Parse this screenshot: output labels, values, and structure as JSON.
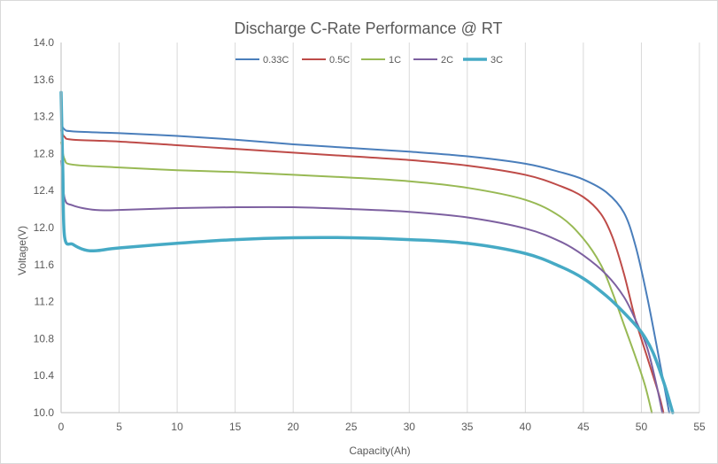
{
  "chart_data": {
    "type": "line",
    "title": "Discharge C-Rate Performance  @ RT",
    "xlabel": "Capacity(Ah)",
    "ylabel": "Voltage(V)",
    "xlim": [
      0,
      55
    ],
    "ylim": [
      10.0,
      14.0
    ],
    "x_ticks": [
      0,
      5,
      10,
      15,
      20,
      25,
      30,
      35,
      40,
      45,
      50,
      55
    ],
    "x_tick_labels": [
      "0",
      "5",
      "10",
      "15",
      "20",
      "25",
      "30",
      "35",
      "40",
      "45",
      "50",
      "55"
    ],
    "y_ticks": [
      10.0,
      10.4,
      10.8,
      11.2,
      11.6,
      12.0,
      12.4,
      12.8,
      13.2,
      13.6,
      14.0
    ],
    "y_tick_labels": [
      "10.0",
      "10.4",
      "10.8",
      "11.2",
      "11.6",
      "12.0",
      "12.4",
      "12.8",
      "13.2",
      "13.6",
      "14.0"
    ],
    "grid": "vertical",
    "legend_position": "top",
    "series": [
      {
        "name": "0.33C",
        "color": "#4a7ebb",
        "points": [
          [
            0,
            13.12
          ],
          [
            0.3,
            13.06
          ],
          [
            1,
            13.04
          ],
          [
            5,
            13.02
          ],
          [
            10,
            12.99
          ],
          [
            15,
            12.95
          ],
          [
            20,
            12.9
          ],
          [
            25,
            12.86
          ],
          [
            30,
            12.82
          ],
          [
            35,
            12.77
          ],
          [
            40,
            12.69
          ],
          [
            43,
            12.6
          ],
          [
            45,
            12.52
          ],
          [
            47,
            12.38
          ],
          [
            48.5,
            12.16
          ],
          [
            49.5,
            11.8
          ],
          [
            50.5,
            11.25
          ],
          [
            51.5,
            10.6
          ],
          [
            52.4,
            10.0
          ]
        ]
      },
      {
        "name": "0.5C",
        "color": "#be4b48",
        "points": [
          [
            0,
            13.05
          ],
          [
            0.3,
            12.98
          ],
          [
            1,
            12.95
          ],
          [
            5,
            12.93
          ],
          [
            10,
            12.89
          ],
          [
            15,
            12.85
          ],
          [
            20,
            12.81
          ],
          [
            25,
            12.77
          ],
          [
            30,
            12.73
          ],
          [
            35,
            12.67
          ],
          [
            40,
            12.57
          ],
          [
            43,
            12.45
          ],
          [
            45,
            12.33
          ],
          [
            46.5,
            12.15
          ],
          [
            47.5,
            11.9
          ],
          [
            48.5,
            11.5
          ],
          [
            49.5,
            11.0
          ],
          [
            50.5,
            10.6
          ],
          [
            51.5,
            10.2
          ],
          [
            51.9,
            10.0
          ]
        ]
      },
      {
        "name": "1C",
        "color": "#98b954",
        "points": [
          [
            0,
            12.92
          ],
          [
            0.3,
            12.74
          ],
          [
            1,
            12.68
          ],
          [
            5,
            12.65
          ],
          [
            10,
            12.62
          ],
          [
            15,
            12.6
          ],
          [
            20,
            12.57
          ],
          [
            25,
            12.54
          ],
          [
            30,
            12.5
          ],
          [
            35,
            12.43
          ],
          [
            40,
            12.3
          ],
          [
            43,
            12.12
          ],
          [
            45,
            11.88
          ],
          [
            46.5,
            11.6
          ],
          [
            47.5,
            11.3
          ],
          [
            48.5,
            10.95
          ],
          [
            49.5,
            10.6
          ],
          [
            50.3,
            10.3
          ],
          [
            50.9,
            10.0
          ]
        ]
      },
      {
        "name": "2C",
        "color": "#7d60a0",
        "points": [
          [
            0,
            12.72
          ],
          [
            0.3,
            12.32
          ],
          [
            1,
            12.24
          ],
          [
            3,
            12.19
          ],
          [
            5,
            12.19
          ],
          [
            10,
            12.21
          ],
          [
            15,
            12.22
          ],
          [
            20,
            12.22
          ],
          [
            25,
            12.2
          ],
          [
            30,
            12.17
          ],
          [
            35,
            12.11
          ],
          [
            40,
            11.99
          ],
          [
            43,
            11.85
          ],
          [
            45,
            11.7
          ],
          [
            47,
            11.49
          ],
          [
            48.5,
            11.25
          ],
          [
            49.5,
            11.0
          ],
          [
            50.5,
            10.7
          ],
          [
            51.3,
            10.3
          ],
          [
            51.8,
            10.0
          ]
        ]
      },
      {
        "name": "3C",
        "color": "#46aac5",
        "points": [
          [
            0,
            13.46
          ],
          [
            0.15,
            12.6
          ],
          [
            0.3,
            11.9
          ],
          [
            1,
            11.82
          ],
          [
            2,
            11.76
          ],
          [
            3,
            11.75
          ],
          [
            5,
            11.78
          ],
          [
            10,
            11.83
          ],
          [
            15,
            11.87
          ],
          [
            20,
            11.89
          ],
          [
            25,
            11.89
          ],
          [
            30,
            11.87
          ],
          [
            35,
            11.83
          ],
          [
            40,
            11.72
          ],
          [
            43,
            11.58
          ],
          [
            45,
            11.45
          ],
          [
            47,
            11.26
          ],
          [
            48.5,
            11.08
          ],
          [
            50,
            10.87
          ],
          [
            51,
            10.65
          ],
          [
            52,
            10.3
          ],
          [
            52.7,
            10.0
          ]
        ]
      }
    ]
  }
}
